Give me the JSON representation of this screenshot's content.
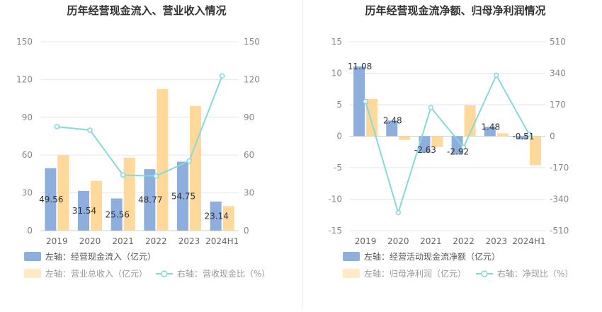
{
  "chart_data": [
    {
      "type": "bar",
      "title": "历年经营现金流入、营业收入情况",
      "categories": [
        "2019",
        "2020",
        "2021",
        "2022",
        "2023",
        "2024H1"
      ],
      "y_left": {
        "ylim": [
          0,
          150
        ],
        "ticks": [
          "0",
          "30",
          "60",
          "90",
          "120",
          "150"
        ]
      },
      "y_right": {
        "ylim": [
          0,
          150
        ],
        "ticks": [
          "0",
          "30",
          "60",
          "90",
          "120",
          "150"
        ]
      },
      "series": [
        {
          "name": "左轴：经营现金流入（亿元）",
          "axis": "left",
          "kind": "bar",
          "color": "#8eaede",
          "values": [
            49.56,
            31.54,
            25.56,
            48.77,
            54.75,
            23.14
          ],
          "labels": [
            "49.56",
            "31.54",
            "25.56",
            "48.77",
            "54.75",
            "23.14"
          ]
        },
        {
          "name": "左轴：营业总收入（亿元）",
          "axis": "left",
          "kind": "bar",
          "color": "#ffd99b",
          "values": [
            60,
            39.5,
            58,
            112.5,
            99,
            19.5
          ]
        },
        {
          "name": "右轴：营收现金比（%）",
          "axis": "right",
          "kind": "line",
          "color": "#86d9db",
          "values": [
            82.6,
            79.8,
            44.1,
            43.4,
            55.3,
            122.9
          ]
        }
      ],
      "grid": true,
      "legend_position": "bottom-left"
    },
    {
      "type": "bar",
      "title": "历年经营现金流净额、归母净利润情况",
      "categories": [
        "2019",
        "2020",
        "2021",
        "2022",
        "2023",
        "2024H1"
      ],
      "y_left": {
        "ylim": [
          -15,
          15
        ],
        "ticks": [
          "-15",
          "-10",
          "-5",
          "0",
          "5",
          "10",
          "15"
        ]
      },
      "y_right": {
        "ylim": [
          -510,
          510
        ],
        "ticks": [
          "-510",
          "-340",
          "-170",
          "0",
          "170",
          "340",
          "510"
        ]
      },
      "series": [
        {
          "name": "左轴：经营活动现金流净额（亿元）",
          "axis": "left",
          "kind": "bar",
          "color": "#8eaede",
          "values": [
            11.08,
            2.48,
            -2.63,
            -2.92,
            1.48,
            -0.51
          ],
          "labels": [
            "11.08",
            "2.48",
            "-2.63",
            "-2.92",
            "1.48",
            "-0.51"
          ]
        },
        {
          "name": "左轴：归母净利润（亿元）",
          "axis": "left",
          "kind": "bar",
          "color": "#ffd99b",
          "values": [
            5.9,
            -0.6,
            -1.7,
            4.9,
            0.45,
            -4.6
          ]
        },
        {
          "name": "右轴：净现比（%）",
          "axis": "right",
          "kind": "line",
          "color": "#86d9db",
          "values": [
            187.8,
            -413,
            154.7,
            -59.6,
            328.9,
            11.1
          ]
        }
      ],
      "grid": true,
      "legend_position": "bottom-left"
    }
  ]
}
